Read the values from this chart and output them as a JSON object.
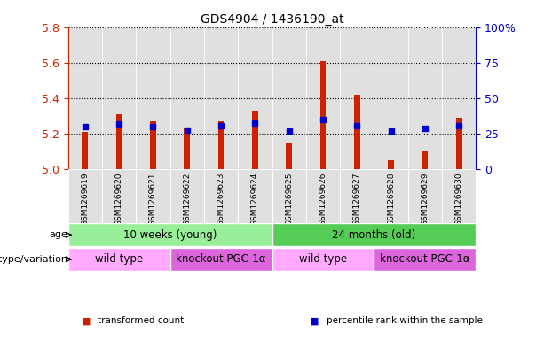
{
  "title": "GDS4904 / 1436190_at",
  "samples": [
    "GSM1269619",
    "GSM1269620",
    "GSM1269621",
    "GSM1269622",
    "GSM1269623",
    "GSM1269624",
    "GSM1269625",
    "GSM1269626",
    "GSM1269627",
    "GSM1269628",
    "GSM1269629",
    "GSM1269630"
  ],
  "transformed_count": [
    5.21,
    5.31,
    5.27,
    5.23,
    5.27,
    5.33,
    5.15,
    5.61,
    5.42,
    5.05,
    5.1,
    5.29
  ],
  "percentile_rank": [
    30,
    32,
    30,
    28,
    31,
    33,
    27,
    35,
    31,
    27,
    29,
    31
  ],
  "bar_base": 5.0,
  "ylim_left": [
    5.0,
    5.8
  ],
  "ylim_right": [
    0,
    100
  ],
  "yticks_left": [
    5.0,
    5.2,
    5.4,
    5.6,
    5.8
  ],
  "yticks_right": [
    0,
    25,
    50,
    75,
    100
  ],
  "ytick_labels_right": [
    "0",
    "25",
    "50",
    "75",
    "100%"
  ],
  "bar_color": "#cc2200",
  "dot_color": "#0000cc",
  "grid_color": "#000000",
  "bg_color": "#ffffff",
  "plot_bg": "#ffffff",
  "col_bg": "#e0e0e0",
  "age_groups": [
    {
      "label": "10 weeks (young)",
      "start": 0,
      "end": 6,
      "color": "#99ee99"
    },
    {
      "label": "24 months (old)",
      "start": 6,
      "end": 12,
      "color": "#55cc55"
    }
  ],
  "genotype_groups": [
    {
      "label": "wild type",
      "start": 0,
      "end": 3,
      "color": "#ffaaff"
    },
    {
      "label": "knockout PGC-1α",
      "start": 3,
      "end": 6,
      "color": "#dd66dd"
    },
    {
      "label": "wild type",
      "start": 6,
      "end": 9,
      "color": "#ffaaff"
    },
    {
      "label": "knockout PGC-1α",
      "start": 9,
      "end": 12,
      "color": "#dd66dd"
    }
  ],
  "legend_items": [
    {
      "label": "transformed count",
      "color": "#cc2200"
    },
    {
      "label": "percentile rank within the sample",
      "color": "#0000cc"
    }
  ],
  "left_ylabel_color": "#cc2200",
  "right_ylabel_color": "#0000cc",
  "age_label": "age",
  "genotype_label": "genotype/variation"
}
